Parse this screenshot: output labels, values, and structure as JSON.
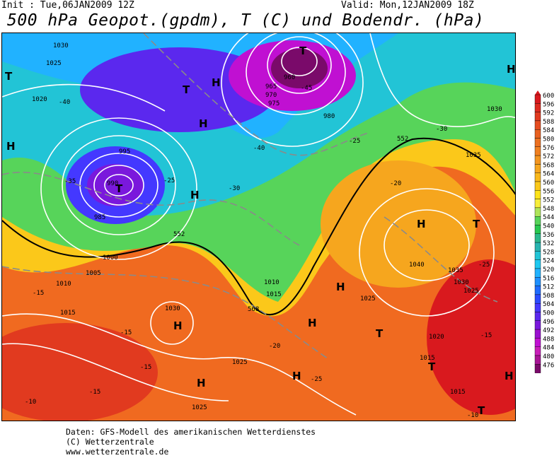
{
  "header": {
    "init": "Init : Tue,06JAN2009 12Z",
    "valid": "Valid: Mon,12JAN2009 18Z",
    "title": "500 hPa Geopot.(gpdm), T (C) und Bodendr. (hPa)"
  },
  "footer": {
    "line1": "Daten: GFS-Modell des amerikanischen Wetterdienstes",
    "line2": "(C) Wetterzentrale",
    "line3": "www.wetterzentrale.de"
  },
  "legend": {
    "levels": [
      "600",
      "596",
      "592",
      "588",
      "584",
      "580",
      "576",
      "572",
      "568",
      "564",
      "560",
      "556",
      "552",
      "548",
      "544",
      "540",
      "536",
      "532",
      "528",
      "524",
      "520",
      "516",
      "512",
      "508",
      "504",
      "500",
      "496",
      "492",
      "488",
      "484",
      "480",
      "476"
    ],
    "colors": [
      "#d9191e",
      "#dd2a1f",
      "#e13a1f",
      "#e54d20",
      "#e86020",
      "#ec7020",
      "#f08020",
      "#f39520",
      "#f6a61e",
      "#f9b81c",
      "#fbc81a",
      "#fde31a",
      "#f7ee3a",
      "#aee45a",
      "#57d45a",
      "#28c850",
      "#2ab88c",
      "#28b4b0",
      "#22c4d6",
      "#1ec8f0",
      "#21b2ff",
      "#1e90ff",
      "#1f6cff",
      "#2a4cff",
      "#4438ff",
      "#5b28ee",
      "#7a18dc",
      "#9a10d0",
      "#c010d2",
      "#c81eb8",
      "#a81496",
      "#7a0a6a"
    ]
  },
  "map": {
    "high_symbol": "H",
    "low_symbol": "T",
    "pressure_labels": [
      "1035",
      "1030",
      "1025",
      "1020",
      "1015",
      "1010",
      "1005",
      "1000",
      "995",
      "990",
      "985",
      "980",
      "975",
      "970",
      "965",
      "960",
      "1040"
    ],
    "temperature_labels": [
      "-35",
      "-40",
      "-45",
      "-30",
      "-25",
      "-20",
      "-15",
      "-10"
    ],
    "geopotential_labels": [
      "552",
      "568"
    ]
  }
}
